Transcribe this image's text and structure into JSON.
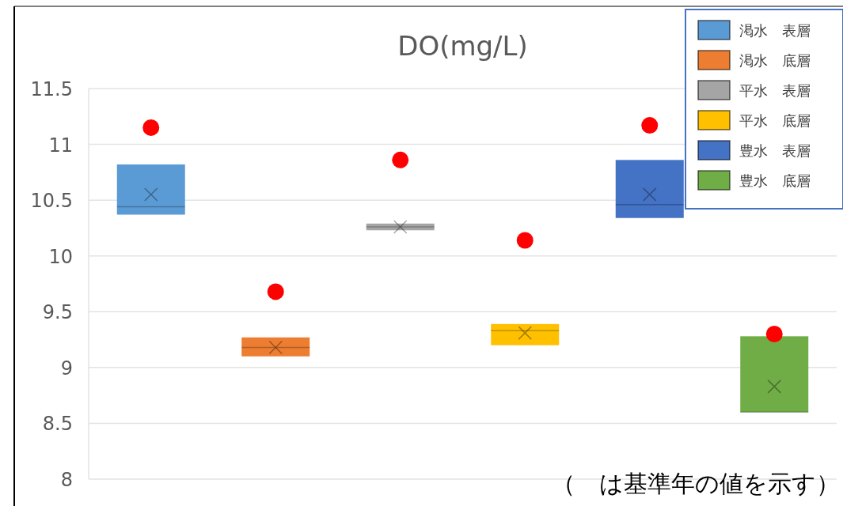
{
  "chart_data": {
    "type": "box",
    "title": "DO(mg/L)",
    "categories": [
      null,
      null,
      null,
      null,
      null,
      null
    ],
    "ylim": [
      8,
      11.5
    ],
    "yticks": [
      8,
      8.5,
      9,
      9.5,
      10,
      10.5,
      11,
      11.5
    ],
    "grid": "y",
    "legend": "top right",
    "annotations": [
      "（　は基準年の値を示す）"
    ],
    "series": [
      {
        "name": "渇水　表層",
        "color": "#5b9bd5",
        "boxes": [
          {
            "low": 10.37,
            "q1": 10.37,
            "median": 10.44,
            "q3": 10.82,
            "high": 10.82,
            "mean": 10.55
          },
          null,
          null,
          null,
          null,
          null
        ]
      },
      {
        "name": "渇水　底層",
        "color": "#ed7d31",
        "boxes": [
          null,
          {
            "low": 9.1,
            "q1": 9.1,
            "median": 9.18,
            "q3": 9.27,
            "high": 9.27,
            "mean": 9.18
          },
          null,
          null,
          null,
          null
        ]
      },
      {
        "name": "平水　表層",
        "color": "#a5a5a5",
        "boxes": [
          null,
          null,
          {
            "low": 10.23,
            "q1": 10.23,
            "median": 10.26,
            "q3": 10.29,
            "high": 10.29,
            "mean": 10.26
          },
          null,
          null,
          null
        ]
      },
      {
        "name": "平水　底層",
        "color": "#ffc000",
        "boxes": [
          null,
          null,
          null,
          {
            "low": 9.2,
            "q1": 9.2,
            "median": 9.33,
            "q3": 9.39,
            "high": 9.39,
            "mean": 9.31
          },
          null,
          null
        ]
      },
      {
        "name": "豊水　表層",
        "color": "#4472c4",
        "boxes": [
          null,
          null,
          null,
          null,
          {
            "low": 10.34,
            "q1": 10.34,
            "median": 10.46,
            "q3": 10.86,
            "high": 10.86,
            "mean": 10.55
          },
          null
        ]
      },
      {
        "name": "豊水　底層",
        "color": "#70ad47",
        "boxes": [
          null,
          null,
          null,
          null,
          null,
          {
            "low": 8.6,
            "q1": 8.6,
            "median": 8.6,
            "q3": 9.28,
            "high": 9.28,
            "mean": 8.83
          }
        ]
      },
      {
        "type": "scatter",
        "color": "#ff0000",
        "marker": "circle",
        "values": [
          11.15,
          9.68,
          10.86,
          10.14,
          11.17,
          9.3
        ]
      }
    ]
  }
}
